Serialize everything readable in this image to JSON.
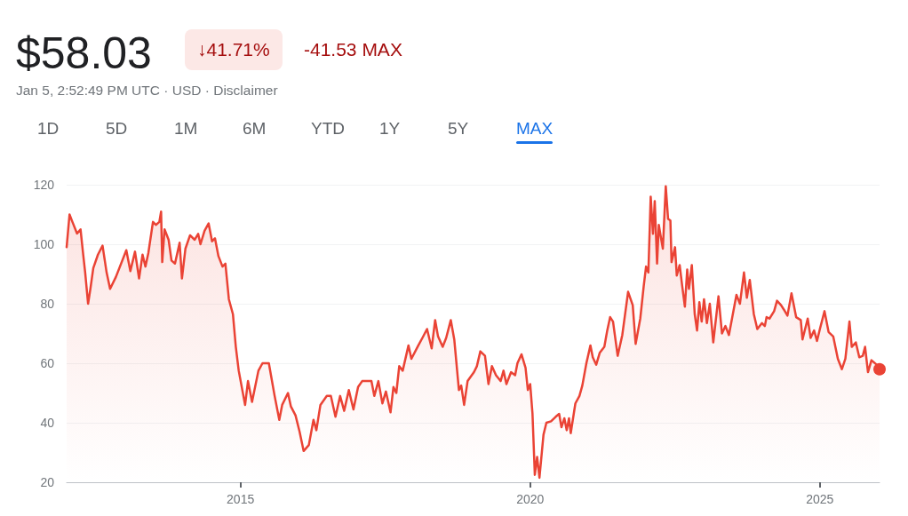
{
  "chart_data": {
    "type": "area",
    "title": "$58.03",
    "subtitle": "Jan 5, 2:52:49 PM UTC · USD · Disclaimer",
    "annotations": [
      "↓41.71%",
      "-41.53 MAX",
      "1D",
      "5D",
      "1M",
      "6M",
      "YTD",
      "1Y",
      "5Y",
      "MAX"
    ],
    "xlim": [
      2012,
      2026.03
    ],
    "xticks": [
      2015,
      2020,
      2025
    ],
    "ylim": [
      20,
      120
    ],
    "yticks": [
      20,
      40,
      60,
      80,
      100,
      120
    ],
    "grid": "y",
    "marker": "none",
    "line_style": "solid",
    "series": [
      {
        "color": "#ea4335",
        "x": [
          2012.0,
          2012.05,
          2012.1,
          2012.18,
          2012.24,
          2012.28,
          2012.32,
          2012.37,
          2012.41,
          2012.46,
          2012.54,
          2012.62,
          2012.69,
          2012.75,
          2012.85,
          2013.03,
          2013.1,
          2013.18,
          2013.25,
          2013.31,
          2013.36,
          2013.41,
          2013.49,
          2013.54,
          2013.6,
          2013.63,
          2013.65,
          2013.69,
          2013.76,
          2013.81,
          2013.87,
          2013.95,
          2013.99,
          2014.05,
          2014.13,
          2014.21,
          2014.27,
          2014.31,
          2014.38,
          2014.45,
          2014.51,
          2014.56,
          2014.62,
          2014.69,
          2014.74,
          2014.8,
          2014.87,
          2014.92,
          2014.97,
          2015.08,
          2015.13,
          2015.2,
          2015.31,
          2015.38,
          2015.49,
          2015.59,
          2015.67,
          2015.72,
          2015.82,
          2015.87,
          2015.95,
          2016.02,
          2016.09,
          2016.18,
          2016.26,
          2016.31,
          2016.38,
          2016.49,
          2016.56,
          2016.64,
          2016.72,
          2016.79,
          2016.87,
          2016.95,
          2017.03,
          2017.1,
          2017.26,
          2017.31,
          2017.38,
          2017.45,
          2017.51,
          2017.59,
          2017.64,
          2017.69,
          2017.74,
          2017.8,
          2017.9,
          2017.95,
          2018.07,
          2018.14,
          2018.22,
          2018.3,
          2018.36,
          2018.41,
          2018.49,
          2018.55,
          2018.63,
          2018.69,
          2018.77,
          2018.81,
          2018.86,
          2018.92,
          2019.03,
          2019.08,
          2019.14,
          2019.22,
          2019.28,
          2019.34,
          2019.41,
          2019.49,
          2019.54,
          2019.59,
          2019.67,
          2019.74,
          2019.78,
          2019.85,
          2019.92,
          2019.96,
          2020.0,
          2020.04,
          2020.08,
          2020.12,
          2020.16,
          2020.23,
          2020.28,
          2020.36,
          2020.44,
          2020.5,
          2020.54,
          2020.59,
          2020.63,
          2020.67,
          2020.7,
          2020.78,
          2020.85,
          2020.9,
          2020.97,
          2021.04,
          2021.08,
          2021.14,
          2021.2,
          2021.28,
          2021.33,
          2021.38,
          2021.43,
          2021.51,
          2021.59,
          2021.69,
          2021.77,
          2021.82,
          2021.9,
          2021.96,
          2022.0,
          2022.04,
          2022.08,
          2022.12,
          2022.15,
          2022.19,
          2022.22,
          2022.25,
          2022.29,
          2022.34,
          2022.38,
          2022.42,
          2022.44,
          2022.5,
          2022.53,
          2022.58,
          2022.62,
          2022.67,
          2022.71,
          2022.74,
          2022.79,
          2022.84,
          2022.88,
          2022.92,
          2022.96,
          2023.0,
          2023.05,
          2023.1,
          2023.16,
          2023.25,
          2023.31,
          2023.37,
          2023.43,
          2023.56,
          2023.62,
          2023.69,
          2023.74,
          2023.79,
          2023.86,
          2023.92,
          2024.0,
          2024.05,
          2024.08,
          2024.13,
          2024.21,
          2024.26,
          2024.33,
          2024.38,
          2024.44,
          2024.51,
          2024.59,
          2024.67,
          2024.7,
          2024.79,
          2024.84,
          2024.9,
          2024.95,
          2025.0,
          2025.08,
          2025.15,
          2025.23,
          2025.31,
          2025.38,
          2025.44,
          2025.51,
          2025.55,
          2025.62,
          2025.68,
          2025.74,
          2025.78,
          2025.83,
          2025.89,
          2025.98,
          2026.03
        ],
        "values": [
          99,
          110,
          107.5,
          103.6,
          105,
          97.6,
          90.5,
          80,
          85,
          92,
          96.5,
          99.5,
          90.5,
          85,
          89,
          98,
          91,
          97.5,
          88.5,
          96.5,
          92.5,
          97,
          107.5,
          106.5,
          107.5,
          111,
          94,
          105,
          101.5,
          94.5,
          93.5,
          100.5,
          88.5,
          98.5,
          103,
          101.5,
          103.5,
          100,
          104.5,
          107,
          101,
          102,
          96,
          92.5,
          93.5,
          81.5,
          76.5,
          65.5,
          57.5,
          46,
          54,
          47,
          57.5,
          60,
          60,
          49,
          41,
          46,
          50,
          45.5,
          42.5,
          37,
          30.5,
          32.5,
          41,
          37.5,
          46,
          49,
          49,
          42,
          49,
          44,
          51,
          44.5,
          52,
          54,
          54,
          49,
          54,
          46.5,
          50.5,
          43.5,
          52,
          50,
          59,
          57.5,
          66,
          61.5,
          66,
          68.5,
          71.5,
          65,
          74.5,
          69,
          65.5,
          68.5,
          74.5,
          68,
          51,
          52.5,
          46,
          54,
          57,
          59,
          64,
          62.5,
          53,
          59,
          56,
          54,
          57.5,
          53,
          57,
          56,
          60,
          63,
          58.5,
          51,
          53,
          43,
          22.5,
          28.5,
          21.5,
          36,
          40,
          40.5,
          42,
          43,
          38.5,
          41.5,
          37.5,
          41.5,
          36.5,
          46.5,
          49,
          52.5,
          60,
          66,
          62,
          59.5,
          63.5,
          65.5,
          71,
          75.5,
          74,
          62.5,
          69.5,
          84,
          79.5,
          66.5,
          75,
          86,
          92.5,
          90.5,
          116,
          103.5,
          114.5,
          93.5,
          106.5,
          103,
          98.5,
          119.5,
          108.5,
          108,
          94,
          99,
          89.5,
          93,
          86.5,
          79,
          91.5,
          85,
          93,
          76.5,
          71,
          80.5,
          74,
          81.5,
          73.5,
          80,
          67,
          82.5,
          70,
          72.5,
          69.5,
          83,
          80,
          90.5,
          82,
          88,
          76.5,
          71.5,
          73.5,
          72.5,
          75.5,
          75,
          77.5,
          81,
          79.5,
          78,
          76,
          83.5,
          75.5,
          74.5,
          68,
          75,
          68.5,
          71,
          67.5,
          71.5,
          77.5,
          70.5,
          69,
          61.5,
          58,
          61.5,
          74,
          65.5,
          67,
          62,
          62.5,
          65.5,
          57,
          61,
          59.5,
          58
        ]
      }
    ]
  }
}
